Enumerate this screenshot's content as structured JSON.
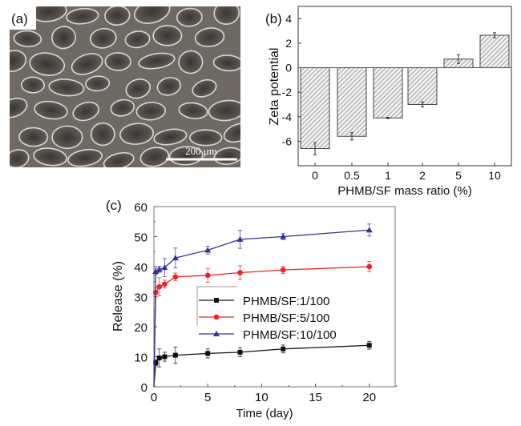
{
  "panels": {
    "a": {
      "label": "(a)",
      "scale_bar": "200 μm"
    },
    "b": {
      "label": "(b)"
    },
    "c": {
      "label": "(c)"
    }
  },
  "chart_data": [
    {
      "type": "bar",
      "panel": "b",
      "title": "",
      "xlabel": "PHMB/SF mass ratio (%)",
      "ylabel": "Zeta potential",
      "categories": [
        "0",
        "0.5",
        "1",
        "2",
        "5",
        "10"
      ],
      "values": [
        -6.6,
        -5.6,
        -4.1,
        -3.0,
        0.7,
        2.65
      ],
      "errors": [
        0.5,
        0.3,
        0.05,
        0.2,
        0.35,
        0.2
      ],
      "ylim": [
        -8,
        5
      ],
      "yticks": [
        -6,
        -4,
        -2,
        0,
        2,
        4
      ],
      "bar_fill": "diagonal hatch, gray",
      "grid": false
    },
    {
      "type": "line",
      "panel": "c",
      "title": "",
      "xlabel": "Time (day)",
      "ylabel": "Release (%)",
      "xlim": [
        0,
        22.4
      ],
      "ylim": [
        0,
        60
      ],
      "xticks": [
        0,
        5,
        10,
        15,
        20
      ],
      "yticks": [
        0,
        10,
        20,
        30,
        40,
        50,
        60
      ],
      "legend": "center-left",
      "grid": false,
      "x": [
        0,
        0.17,
        0.5,
        1,
        2,
        5,
        8,
        12,
        20
      ],
      "series": [
        {
          "name": "PHMB/SF:1/100",
          "color": "#111111",
          "marker": "square",
          "values": [
            0,
            8.0,
            9.6,
            10.0,
            10.5,
            11.1,
            11.5,
            12.6,
            13.8
          ],
          "errors": [
            0,
            1.0,
            3.0,
            1.5,
            2.7,
            1.5,
            1.5,
            1.3,
            1.3
          ]
        },
        {
          "name": "PHMB/SF:5/100",
          "color": "#ee2222",
          "marker": "circle",
          "values": [
            0,
            31.4,
            33.3,
            34.2,
            36.6,
            37.1,
            38.0,
            38.9,
            40.0
          ],
          "errors": [
            0,
            1.5,
            3.0,
            1.3,
            1.3,
            2.3,
            2.3,
            1.2,
            1.7
          ]
        },
        {
          "name": "PHMB/SF:10/100",
          "color": "#333399",
          "marker": "triangle",
          "values": [
            0,
            38.4,
            39.1,
            39.7,
            42.9,
            45.5,
            49.1,
            50.0,
            52.2
          ],
          "errors": [
            0,
            1.0,
            1.0,
            3.0,
            3.3,
            1.3,
            3.0,
            1.0,
            2.0
          ]
        }
      ]
    }
  ]
}
